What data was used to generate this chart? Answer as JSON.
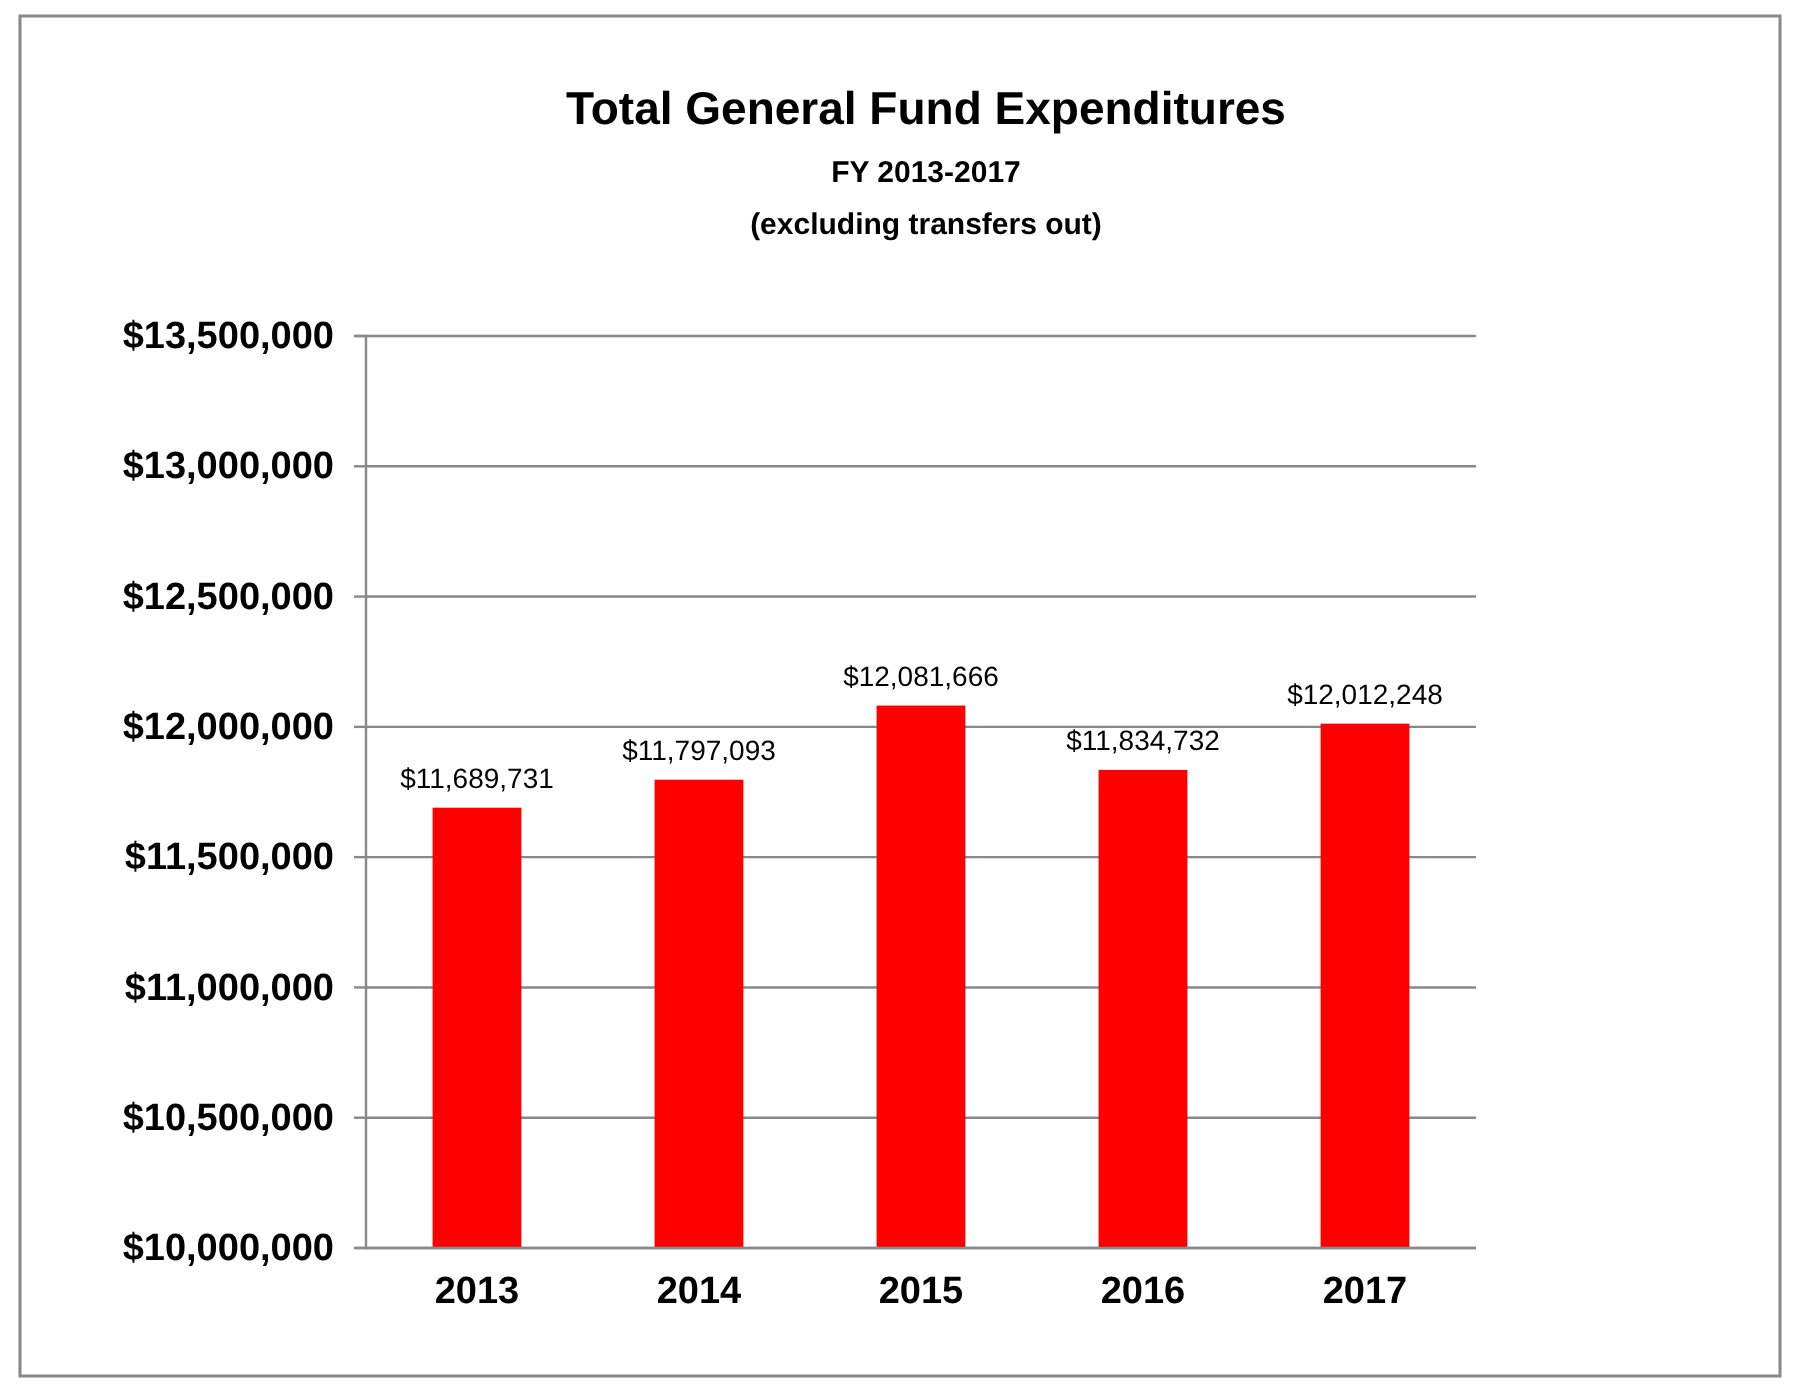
{
  "chart_data": {
    "type": "bar",
    "title": "Total General Fund  Expenditures",
    "subtitle": "FY 2013-2017\n(excluding transfers out)",
    "categories": [
      "2013",
      "2014",
      "2015",
      "2016",
      "2017"
    ],
    "values": [
      11689731,
      11797093,
      12081666,
      11834732,
      12012248
    ],
    "value_labels": [
      "$11,689,731",
      "$11,797,093",
      "$12,081,666",
      "$11,834,732",
      "$12,012,248"
    ],
    "color": "#ff0000",
    "ylim": [
      10000000,
      13500000
    ],
    "yticks": [
      {
        "value": 10000000,
        "label": "$10,000,000"
      },
      {
        "value": 10500000,
        "label": "$10,500,000"
      },
      {
        "value": 11000000,
        "label": "$11,000,000"
      },
      {
        "value": 11500000,
        "label": "$11,500,000"
      },
      {
        "value": 12000000,
        "label": "$12,000,000"
      },
      {
        "value": 12500000,
        "label": "$12,500,000"
      },
      {
        "value": 13000000,
        "label": "$13,000,000"
      },
      {
        "value": 13500000,
        "label": "$13,500,000"
      }
    ],
    "grid": "y"
  }
}
